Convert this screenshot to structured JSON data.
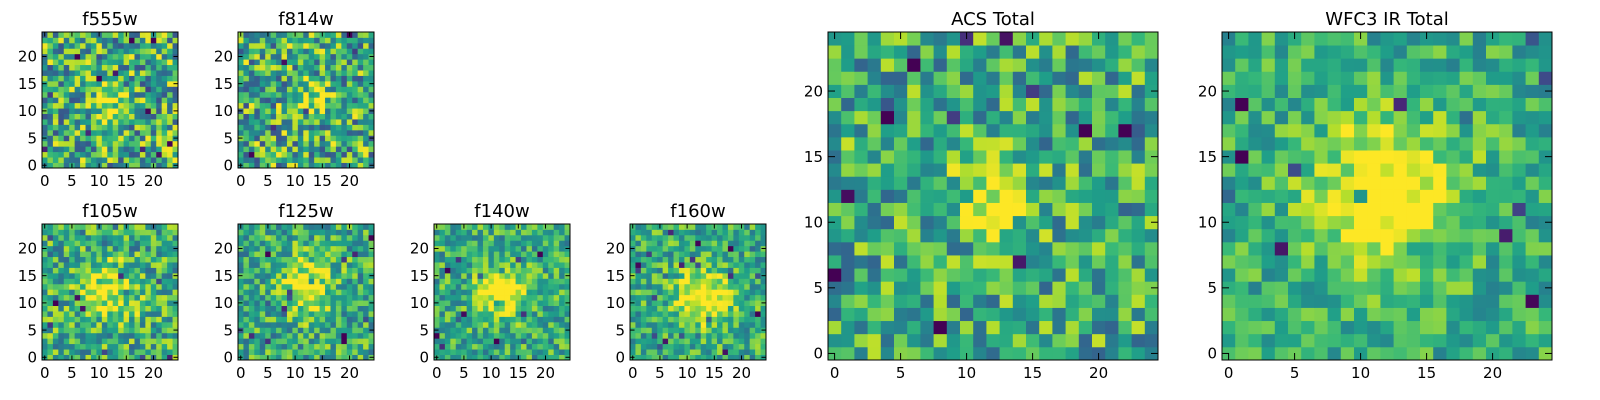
{
  "chart_data": [
    {
      "type": "heatmap",
      "title": "f555w",
      "xticks": [
        "0",
        "5",
        "10",
        "15",
        "20"
      ],
      "yticks": [
        "0",
        "5",
        "10",
        "15",
        "20"
      ],
      "xlim": [
        -0.5,
        24.5
      ],
      "ylim": [
        -0.5,
        24.5
      ],
      "grid_size": 25,
      "peak": [
        12,
        12
      ],
      "sigma": 2.0,
      "amp": 0.35,
      "noise": 0.75,
      "colormap": "viridis"
    },
    {
      "type": "heatmap",
      "title": "f814w",
      "xticks": [
        "0",
        "5",
        "10",
        "15",
        "20"
      ],
      "yticks": [
        "0",
        "5",
        "10",
        "15",
        "20"
      ],
      "xlim": [
        -0.5,
        24.5
      ],
      "ylim": [
        -0.5,
        24.5
      ],
      "grid_size": 25,
      "peak": [
        13,
        12
      ],
      "sigma": 2.0,
      "amp": 0.35,
      "noise": 0.75,
      "colormap": "viridis"
    },
    {
      "type": "heatmap",
      "title": "f105w",
      "xticks": [
        "0",
        "5",
        "10",
        "15",
        "20"
      ],
      "yticks": [
        "0",
        "5",
        "10",
        "15",
        "20"
      ],
      "xlim": [
        -0.5,
        24.5
      ],
      "ylim": [
        -0.5,
        24.5
      ],
      "grid_size": 25,
      "peak": [
        12,
        12
      ],
      "sigma": 3.5,
      "amp": 0.4,
      "noise": 0.6,
      "colormap": "viridis"
    },
    {
      "type": "heatmap",
      "title": "f125w",
      "xticks": [
        "0",
        "5",
        "10",
        "15",
        "20"
      ],
      "yticks": [
        "0",
        "5",
        "10",
        "15",
        "20"
      ],
      "xlim": [
        -0.5,
        24.5
      ],
      "ylim": [
        -0.5,
        24.5
      ],
      "grid_size": 25,
      "peak": [
        12,
        13
      ],
      "sigma": 3.5,
      "amp": 0.4,
      "noise": 0.55,
      "colormap": "viridis"
    },
    {
      "type": "heatmap",
      "title": "f140w",
      "xticks": [
        "0",
        "5",
        "10",
        "15",
        "20"
      ],
      "yticks": [
        "0",
        "5",
        "10",
        "15",
        "20"
      ],
      "xlim": [
        -0.5,
        24.5
      ],
      "ylim": [
        -0.5,
        24.5
      ],
      "grid_size": 25,
      "peak": [
        12,
        12
      ],
      "sigma": 3.0,
      "amp": 0.5,
      "noise": 0.5,
      "colormap": "viridis"
    },
    {
      "type": "heatmap",
      "title": "f160w",
      "xticks": [
        "0",
        "5",
        "10",
        "15",
        "20"
      ],
      "yticks": [
        "0",
        "5",
        "10",
        "15",
        "20"
      ],
      "xlim": [
        -0.5,
        24.5
      ],
      "ylim": [
        -0.5,
        24.5
      ],
      "grid_size": 25,
      "peak": [
        13,
        11
      ],
      "sigma": 3.5,
      "amp": 0.5,
      "noise": 0.5,
      "colormap": "viridis"
    },
    {
      "type": "heatmap",
      "title": "ACS Total",
      "xticks": [
        "0",
        "5",
        "10",
        "15",
        "20"
      ],
      "yticks": [
        "0",
        "5",
        "10",
        "15",
        "20"
      ],
      "xlim": [
        -0.5,
        24.5
      ],
      "ylim": [
        -0.5,
        24.5
      ],
      "grid_size": 25,
      "peak": [
        12,
        12
      ],
      "sigma": 2.0,
      "amp": 0.45,
      "noise": 0.6,
      "colormap": "viridis"
    },
    {
      "type": "heatmap",
      "title": "WFC3 IR Total",
      "xticks": [
        "0",
        "5",
        "10",
        "15",
        "20"
      ],
      "yticks": [
        "0",
        "5",
        "10",
        "15",
        "20"
      ],
      "xlim": [
        -0.5,
        24.5
      ],
      "ylim": [
        -0.5,
        24.5
      ],
      "grid_size": 25,
      "peak": [
        12,
        12
      ],
      "sigma": 4.0,
      "amp": 0.55,
      "noise": 0.4,
      "colormap": "viridis"
    }
  ]
}
